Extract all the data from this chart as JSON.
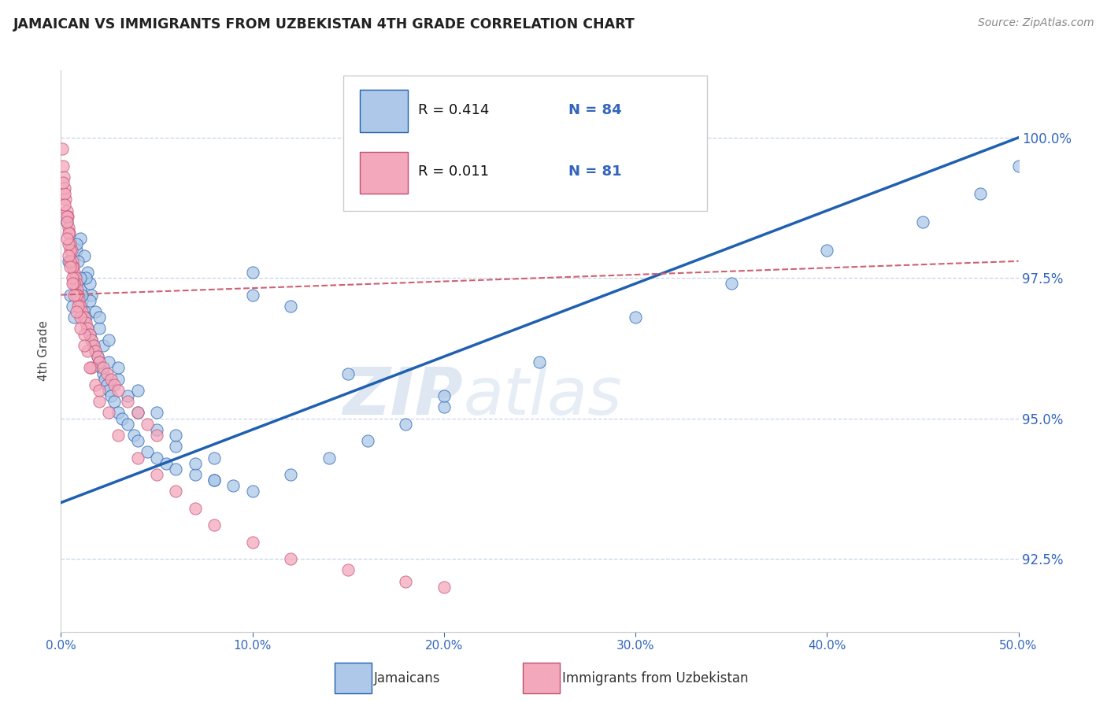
{
  "title": "JAMAICAN VS IMMIGRANTS FROM UZBEKISTAN 4TH GRADE CORRELATION CHART",
  "source_text": "Source: ZipAtlas.com",
  "ylabel": "4th Grade",
  "xlim": [
    0.0,
    50.0
  ],
  "ylim": [
    91.2,
    101.2
  ],
  "yticks": [
    92.5,
    95.0,
    97.5,
    100.0
  ],
  "ytick_labels": [
    "92.5%",
    "95.0%",
    "97.5%",
    "100.0%"
  ],
  "xticks": [
    0,
    10,
    20,
    30,
    40,
    50
  ],
  "xtick_labels": [
    "0.0%",
    "10.0%",
    "20.0%",
    "30.0%",
    "40.0%",
    "50.0%"
  ],
  "watermark_zip": "ZIP",
  "watermark_atlas": "atlas",
  "legend_R1": "R = 0.414",
  "legend_N1": "N = 84",
  "legend_R2": "R = 0.011",
  "legend_N2": "N = 81",
  "legend_label1": "Jamaicans",
  "legend_label2": "Immigrants from Uzbekistan",
  "scatter_blue_color": "#adc8e8",
  "scatter_pink_color": "#f4a8bc",
  "line_blue_color": "#2060b0",
  "line_pink_color": "#d06070",
  "blue_scatter_x": [
    0.3,
    0.4,
    0.5,
    0.6,
    0.7,
    0.8,
    0.9,
    1.0,
    1.1,
    1.2,
    1.3,
    1.4,
    1.5,
    1.6,
    1.7,
    1.8,
    1.9,
    2.0,
    2.1,
    2.2,
    2.3,
    2.4,
    2.5,
    2.6,
    2.8,
    3.0,
    3.2,
    3.5,
    3.8,
    4.0,
    4.5,
    5.0,
    5.5,
    6.0,
    7.0,
    8.0,
    9.0,
    10.0,
    12.0,
    14.0,
    16.0,
    18.0,
    20.0,
    25.0,
    30.0,
    35.0,
    40.0,
    45.0,
    48.0,
    50.0,
    1.0,
    1.2,
    1.4,
    1.5,
    1.6,
    1.8,
    2.0,
    2.2,
    2.5,
    3.0,
    3.5,
    4.0,
    5.0,
    6.0,
    7.0,
    8.0,
    10.0,
    12.0,
    1.3,
    1.5,
    2.0,
    2.5,
    3.0,
    4.0,
    5.0,
    6.0,
    8.0,
    10.0,
    15.0,
    20.0,
    0.8,
    0.9,
    1.0,
    1.1
  ],
  "blue_scatter_y": [
    98.5,
    97.8,
    97.2,
    97.0,
    96.8,
    98.0,
    97.5,
    97.3,
    97.1,
    96.9,
    96.8,
    96.6,
    96.5,
    96.4,
    96.3,
    96.2,
    96.1,
    96.0,
    95.9,
    95.8,
    95.7,
    95.6,
    95.5,
    95.4,
    95.3,
    95.1,
    95.0,
    94.9,
    94.7,
    94.6,
    94.4,
    94.3,
    94.2,
    94.1,
    94.0,
    93.9,
    93.8,
    93.7,
    94.0,
    94.3,
    94.6,
    94.9,
    95.2,
    96.0,
    96.8,
    97.4,
    98.0,
    98.5,
    99.0,
    99.5,
    98.2,
    97.9,
    97.6,
    97.4,
    97.2,
    96.9,
    96.6,
    96.3,
    96.0,
    95.7,
    95.4,
    95.1,
    94.8,
    94.5,
    94.2,
    93.9,
    97.2,
    97.0,
    97.5,
    97.1,
    96.8,
    96.4,
    95.9,
    95.5,
    95.1,
    94.7,
    94.3,
    97.6,
    95.8,
    95.4,
    98.1,
    97.8,
    97.5,
    97.2
  ],
  "pink_scatter_x": [
    0.05,
    0.1,
    0.15,
    0.2,
    0.25,
    0.3,
    0.35,
    0.4,
    0.45,
    0.5,
    0.55,
    0.6,
    0.65,
    0.7,
    0.75,
    0.8,
    0.85,
    0.9,
    0.95,
    1.0,
    1.1,
    1.2,
    1.3,
    1.4,
    1.5,
    1.6,
    1.7,
    1.8,
    1.9,
    2.0,
    2.2,
    2.4,
    2.6,
    2.8,
    3.0,
    3.5,
    4.0,
    4.5,
    5.0,
    0.2,
    0.3,
    0.4,
    0.5,
    0.6,
    0.7,
    0.8,
    0.9,
    1.0,
    1.2,
    1.4,
    1.6,
    1.8,
    2.0,
    0.1,
    0.2,
    0.3,
    0.4,
    0.5,
    0.6,
    0.7,
    0.8,
    1.0,
    1.2,
    1.5,
    2.0,
    2.5,
    3.0,
    4.0,
    5.0,
    6.0,
    7.0,
    8.0,
    10.0,
    12.0,
    15.0,
    18.0,
    20.0,
    0.3,
    0.4,
    0.5,
    0.6
  ],
  "pink_scatter_y": [
    99.8,
    99.5,
    99.3,
    99.1,
    98.9,
    98.7,
    98.6,
    98.4,
    98.3,
    98.1,
    98.0,
    97.8,
    97.7,
    97.6,
    97.5,
    97.4,
    97.3,
    97.2,
    97.1,
    97.0,
    96.9,
    96.8,
    96.7,
    96.6,
    96.5,
    96.4,
    96.3,
    96.2,
    96.1,
    96.0,
    95.9,
    95.8,
    95.7,
    95.6,
    95.5,
    95.3,
    95.1,
    94.9,
    94.7,
    99.0,
    98.6,
    98.3,
    98.0,
    97.7,
    97.4,
    97.2,
    97.0,
    96.8,
    96.5,
    96.2,
    95.9,
    95.6,
    95.3,
    99.2,
    98.8,
    98.5,
    98.1,
    97.8,
    97.5,
    97.2,
    96.9,
    96.6,
    96.3,
    95.9,
    95.5,
    95.1,
    94.7,
    94.3,
    94.0,
    93.7,
    93.4,
    93.1,
    92.8,
    92.5,
    92.3,
    92.1,
    92.0,
    98.2,
    97.9,
    97.7,
    97.4
  ],
  "blue_line_x": [
    0.0,
    50.0
  ],
  "blue_line_y": [
    93.5,
    100.0
  ],
  "pink_line_x": [
    0.0,
    50.0
  ],
  "pink_line_y": [
    97.2,
    97.8
  ],
  "background_color": "#ffffff",
  "grid_color": "#c8d4e8",
  "axis_color": "#3366bb",
  "text_color": "#222222"
}
